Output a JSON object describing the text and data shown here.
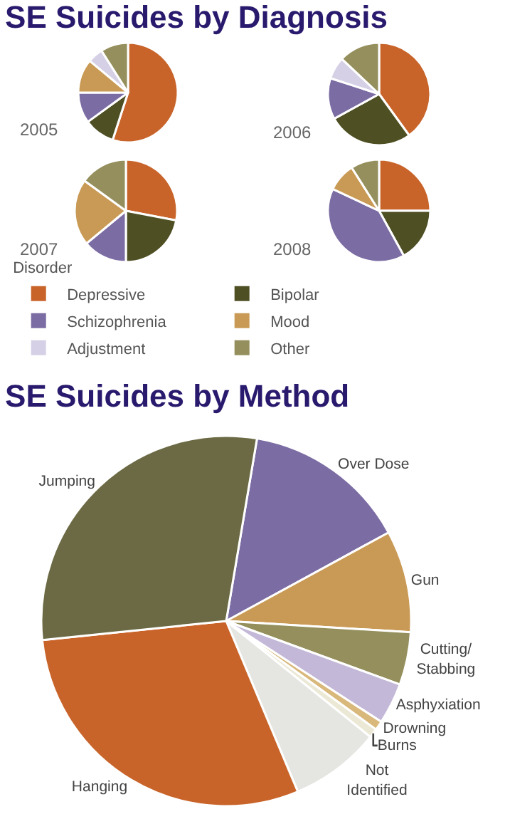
{
  "chart_data": [
    {
      "type": "pie",
      "title": "SE Suicides by Diagnosis",
      "subtitle": "2005",
      "legend_title": "Disorder",
      "legend": "bottom",
      "categories": [
        "Depressive",
        "Bipolar",
        "Schizophrenia",
        "Mood",
        "Adjustment",
        "Other"
      ],
      "values": [
        55,
        10,
        10,
        11,
        5,
        9
      ],
      "colors": [
        "#c8642a",
        "#4f4f24",
        "#7b6ca3",
        "#c99a55",
        "#d6d0e6",
        "#948f5c"
      ]
    },
    {
      "type": "pie",
      "title": "2006",
      "values": [
        40,
        27,
        13,
        0,
        7,
        13
      ],
      "colors": [
        "#c8642a",
        "#4f4f24",
        "#7b6ca3",
        "#c99a55",
        "#d6d0e6",
        "#948f5c"
      ]
    },
    {
      "type": "pie",
      "title": "2007",
      "values": [
        28,
        22,
        14,
        21,
        0,
        15
      ],
      "colors": [
        "#c8642a",
        "#4f4f24",
        "#7b6ca3",
        "#c99a55",
        "#d6d0e6",
        "#948f5c"
      ]
    },
    {
      "type": "pie",
      "title": "2008",
      "values": [
        25,
        17,
        40,
        9,
        0,
        9
      ],
      "colors": [
        "#c8642a",
        "#4f4f24",
        "#7b6ca3",
        "#c99a55",
        "#d6d0e6",
        "#948f5c"
      ]
    },
    {
      "type": "pie",
      "title": "SE Suicides by Method",
      "categories": [
        "Over Dose",
        "Gun",
        "Cutting/ Stabbing",
        "Asphyxiation",
        "Drowning",
        "Burns",
        "Not Identified",
        "Hanging",
        "Jumping"
      ],
      "values": [
        14.4,
        8.9,
        4.6,
        3.6,
        0.8,
        0.8,
        7.9,
        29.7,
        29.3
      ],
      "colors": [
        "#7b6ca3",
        "#c99a55",
        "#948f5c",
        "#c3b8d8",
        "#d9b87c",
        "#ece8d6",
        "#e5e5e2",
        "#c8642a",
        "#6b6a45"
      ]
    }
  ]
}
